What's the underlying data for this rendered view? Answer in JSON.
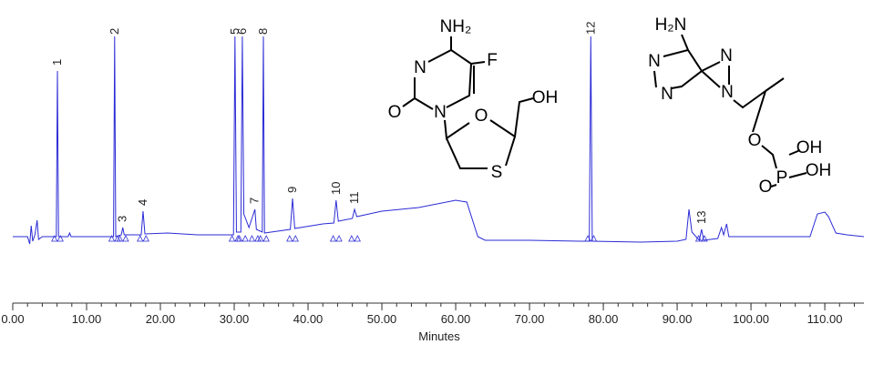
{
  "chart_data": {
    "type": "line",
    "x_label": "Minutes",
    "x": [
      0,
      2.0,
      2.3,
      2.5,
      2.7,
      3.0,
      3.3,
      3.5,
      4.0,
      5.9,
      6.05,
      6.2,
      7.5,
      7.7,
      7.9,
      13.0,
      13.65,
      13.8,
      13.95,
      14.7,
      14.9,
      15.1,
      17.4,
      17.65,
      17.9,
      21,
      25,
      29.9,
      30.1,
      30.3,
      30.9,
      31.1,
      31.3,
      32.0,
      32.8,
      33.0,
      33.8,
      33.95,
      34.1,
      37.6,
      37.9,
      38.2,
      42,
      43.5,
      43.8,
      44.1,
      46.0,
      46.3,
      46.6,
      50,
      55,
      60,
      61.5,
      63,
      64,
      70,
      77,
      78.1,
      78.3,
      78.5,
      85,
      90,
      91.2,
      91.6,
      92.0,
      93.0,
      93.3,
      93.6,
      95.5,
      96.0,
      96.3,
      96.7,
      97.0,
      100,
      108,
      109,
      110,
      110.5,
      111.5,
      113,
      115.3
    ],
    "series": [
      {
        "color": "#2b2bd6",
        "values": [
          0,
          0,
          -8,
          12,
          -5,
          2,
          18,
          -3,
          0,
          0,
          182,
          0,
          0,
          4,
          0,
          0,
          0,
          220,
          0,
          2,
          10,
          2,
          2,
          28,
          3,
          4,
          2,
          2,
          220,
          5,
          5,
          220,
          25,
          10,
          30,
          8,
          5,
          220,
          4,
          8,
          42,
          9,
          14,
          15,
          40,
          17,
          20,
          30,
          22,
          28,
          32,
          40,
          38,
          0,
          -4,
          -4,
          -5,
          -5,
          220,
          -5,
          -6,
          -5,
          -3,
          30,
          5,
          -4,
          8,
          -4,
          -2,
          10,
          2,
          14,
          0,
          0,
          0,
          25,
          27,
          22,
          4,
          2,
          0
        ]
      }
    ],
    "xlim": [
      0,
      115.3
    ],
    "ylim": [
      -30,
      230
    ],
    "xticks": [
      {
        "value": 0,
        "label": "0.00"
      },
      {
        "value": 10,
        "label": "10.00"
      },
      {
        "value": 20,
        "label": "20.00"
      },
      {
        "value": 30,
        "label": "30.00"
      },
      {
        "value": 40,
        "label": "40.00"
      },
      {
        "value": 50,
        "label": "50.00"
      },
      {
        "value": 60,
        "label": "60.00"
      },
      {
        "value": 70,
        "label": "70.00"
      },
      {
        "value": 80,
        "label": "80.00"
      },
      {
        "value": 90,
        "label": "90.00"
      },
      {
        "value": 100,
        "label": "100.00"
      },
      {
        "value": 110,
        "label": "110.00"
      }
    ],
    "peaks": [
      {
        "label": "1",
        "time": 6.05
      },
      {
        "label": "2",
        "time": 13.8
      },
      {
        "label": "3",
        "time": 14.9
      },
      {
        "label": "4",
        "time": 17.65
      },
      {
        "label": "5",
        "time": 30.1
      },
      {
        "label": "6",
        "time": 31.1
      },
      {
        "label": "7",
        "time": 32.8
      },
      {
        "label": "8",
        "time": 33.95
      },
      {
        "label": "9",
        "time": 37.9
      },
      {
        "label": "10",
        "time": 43.8
      },
      {
        "label": "11",
        "time": 46.3
      },
      {
        "label": "12",
        "time": 78.3
      },
      {
        "label": "13",
        "time": 93.3
      }
    ]
  },
  "structures": [
    {
      "atoms": [
        "NH₂",
        "N",
        "F",
        "O",
        "N",
        "O",
        "OH",
        "S"
      ]
    },
    {
      "atoms": [
        "H₂N",
        "N",
        "N",
        "N",
        "N",
        "O",
        "P",
        "OH",
        "OH",
        "O"
      ]
    }
  ]
}
